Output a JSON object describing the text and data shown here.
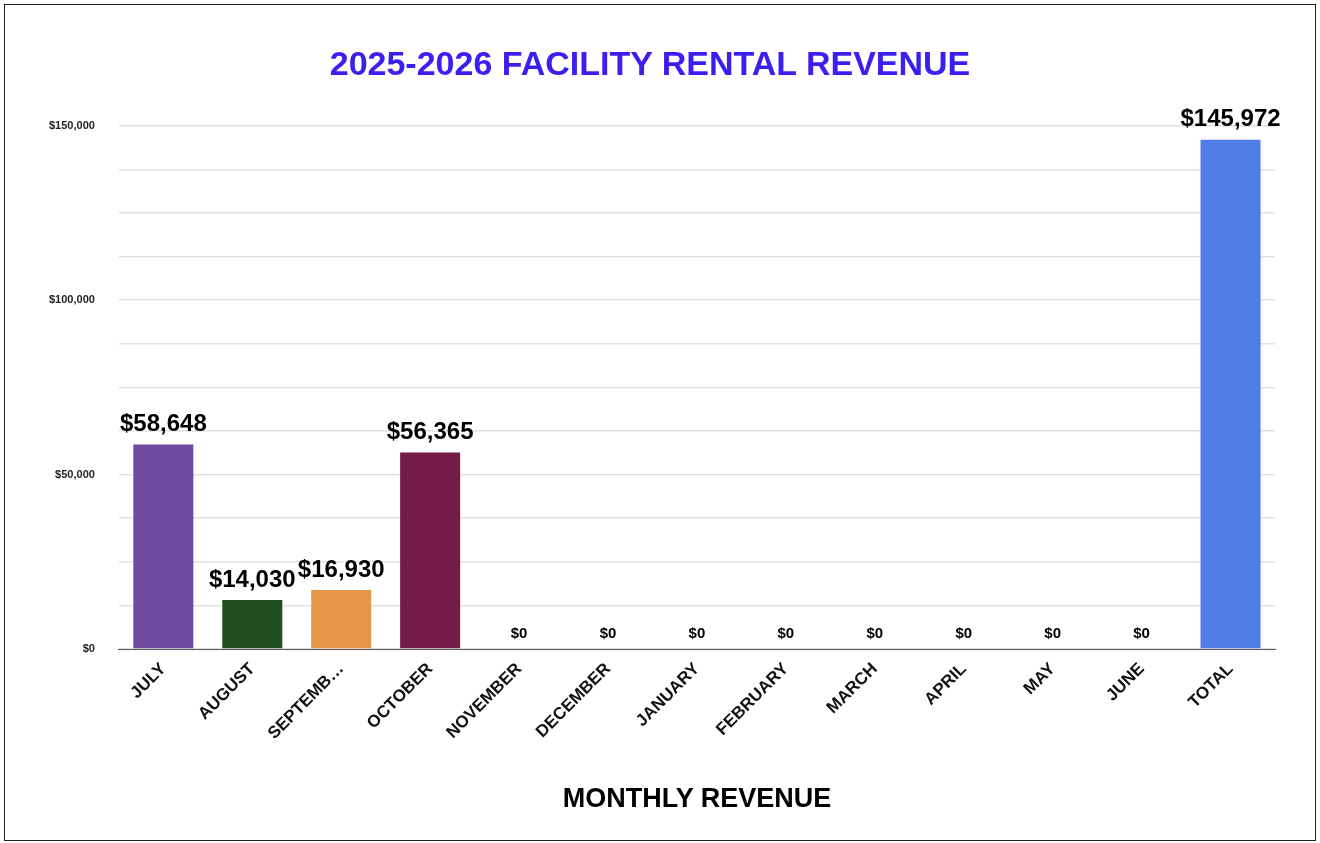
{
  "chart_data": {
    "type": "bar",
    "title": "2025-2026 FACILITY RENTAL REVENUE",
    "xlabel": "MONTHLY REVENUE",
    "categories": [
      "JULY",
      "AUGUST",
      "SEPTEMB…",
      "OCTOBER",
      "NOVEMBER",
      "DECEMBER",
      "JANUARY",
      "FEBRUARY",
      "MARCH",
      "APRIL",
      "MAY",
      "JUNE",
      "TOTAL"
    ],
    "values": [
      58648,
      14030,
      16930,
      56365,
      0,
      0,
      0,
      0,
      0,
      0,
      0,
      0,
      145972
    ],
    "value_labels": [
      "$58,648",
      "$14,030",
      "$16,930",
      "$56,365",
      "$0",
      "$0",
      "$0",
      "$0",
      "$0",
      "$0",
      "$0",
      "$0",
      "$145,972"
    ],
    "colors": [
      "#6f4ba0",
      "#234f1e",
      "#e69646",
      "#741b47",
      "#ff8c40",
      "#dc3535",
      "#ff00ff",
      "#ffff55",
      "#00ff55",
      "#6a9aa5",
      "#7b3a2e",
      "#333333",
      "#4f7ee8"
    ],
    "ylim": [
      0,
      150000
    ],
    "yticks": [
      {
        "value": 0,
        "label": "$0"
      },
      {
        "value": 12500,
        "label": null
      },
      {
        "value": 25000,
        "label": null
      },
      {
        "value": 37500,
        "label": null
      },
      {
        "value": 50000,
        "label": "$50,000"
      },
      {
        "value": 62500,
        "label": null
      },
      {
        "value": 75000,
        "label": null
      },
      {
        "value": 87500,
        "label": null
      },
      {
        "value": 100000,
        "label": "$100,000"
      },
      {
        "value": 112500,
        "label": null
      },
      {
        "value": 125000,
        "label": null
      },
      {
        "value": 137500,
        "label": null
      },
      {
        "value": 150000,
        "label": "$150,000"
      }
    ],
    "grid": "y",
    "legend": false
  }
}
